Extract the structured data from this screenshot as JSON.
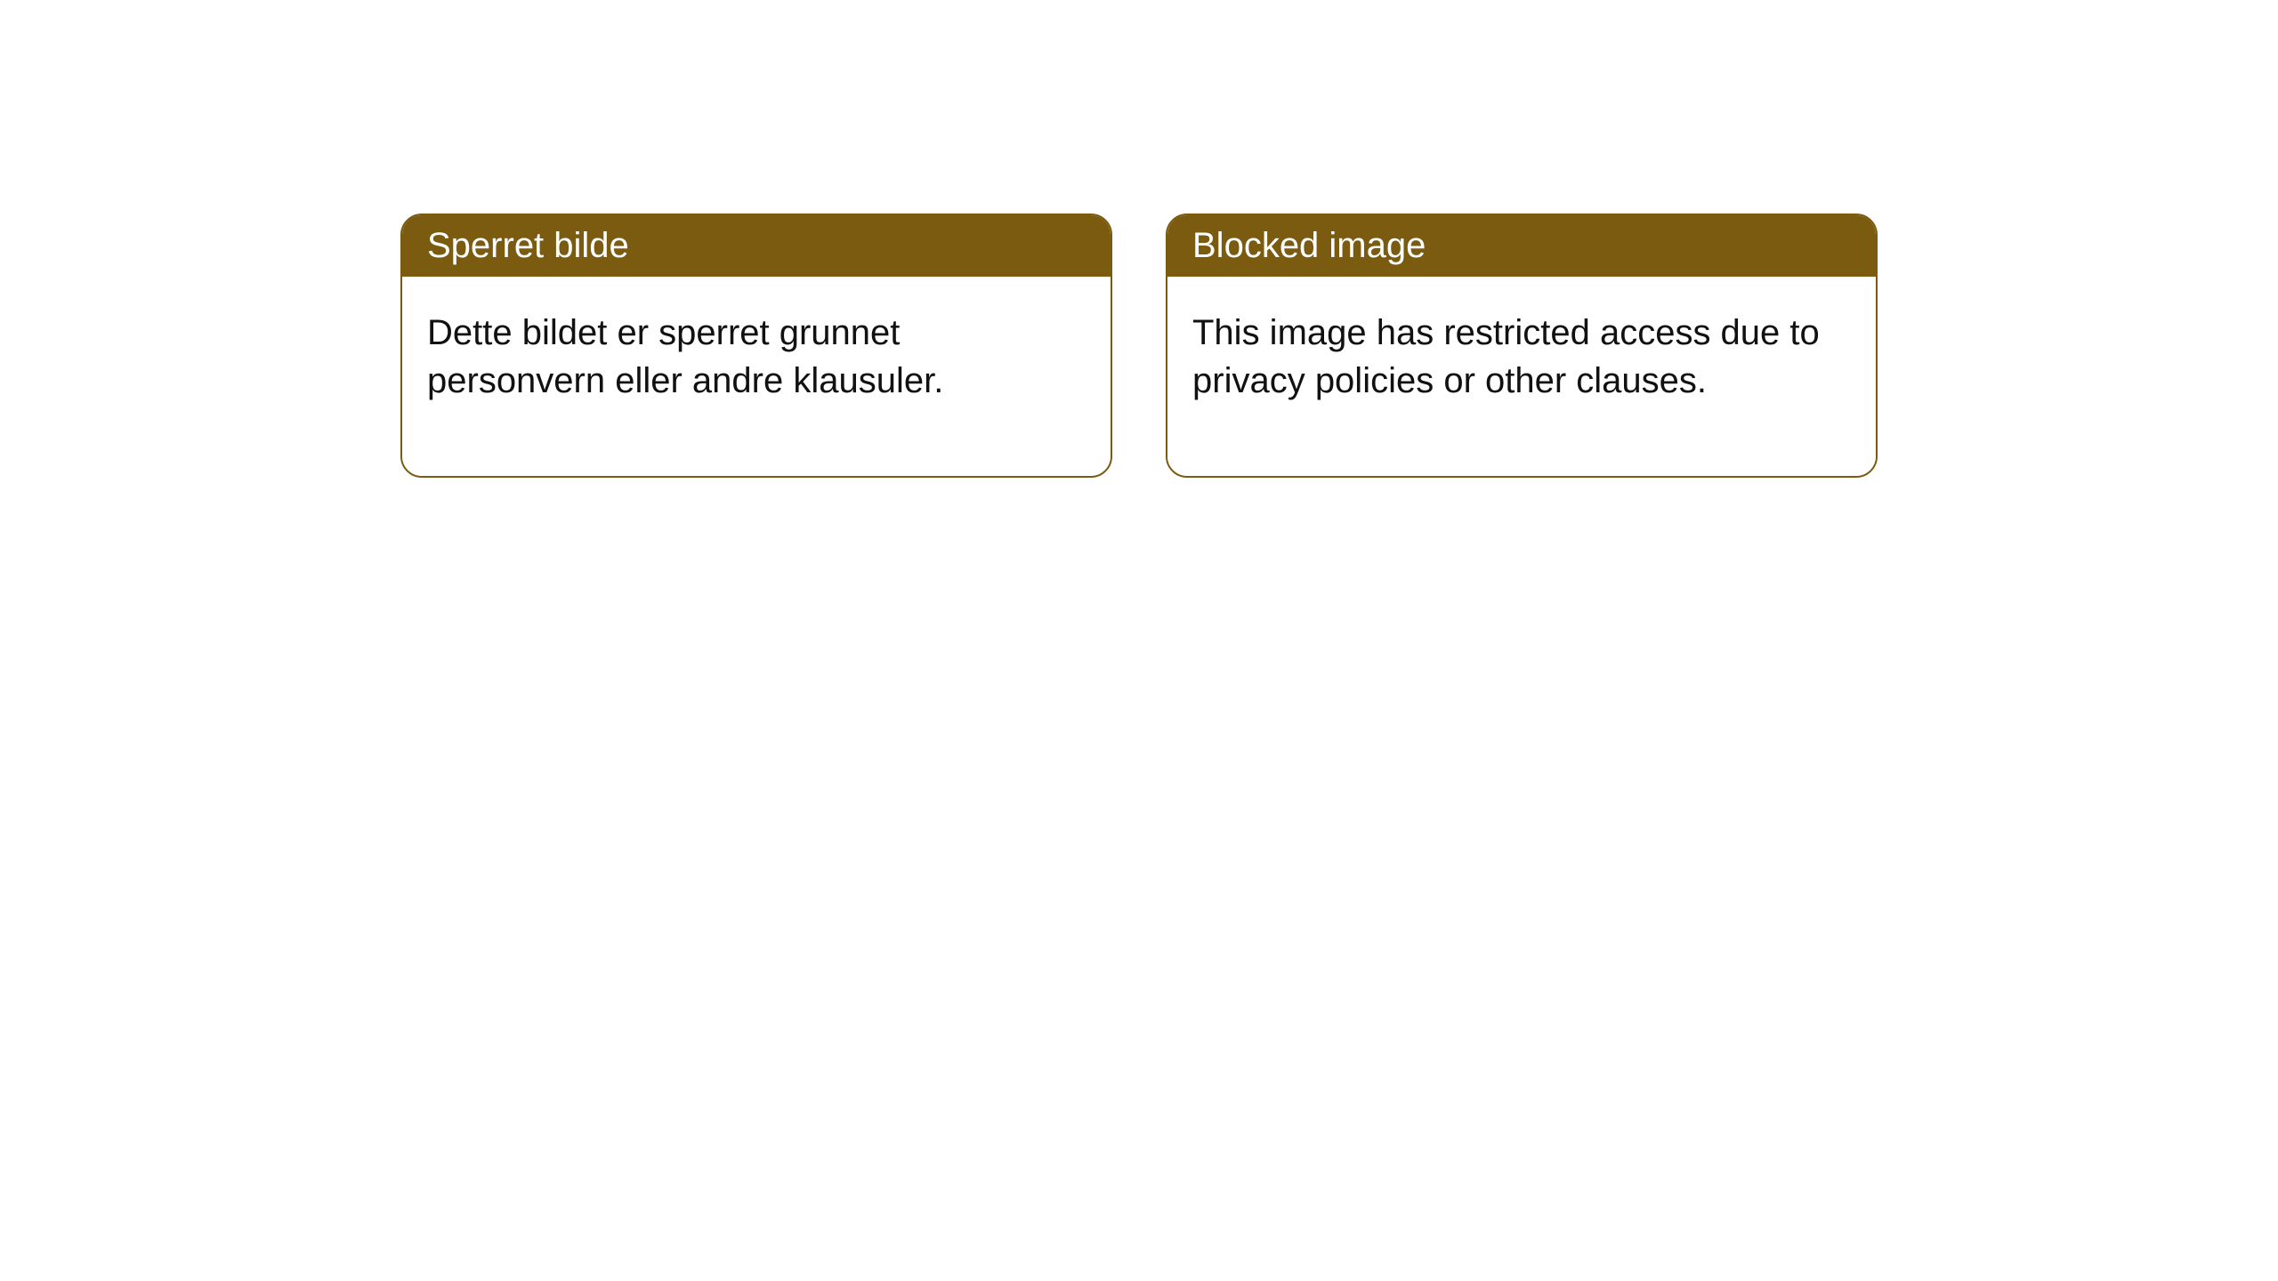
{
  "colors": {
    "card_border": "#7a5b0f",
    "header_bg": "#7a5b0f",
    "header_text": "#ffffff",
    "body_bg": "#ffffff",
    "body_text": "#111111",
    "page_bg": "#ffffff"
  },
  "cards": [
    {
      "title": "Sperret bilde",
      "body": "Dette bildet er sperret grunnet personvern eller andre klausuler."
    },
    {
      "title": "Blocked image",
      "body": "This image has restricted access due to privacy policies or other clauses."
    }
  ]
}
